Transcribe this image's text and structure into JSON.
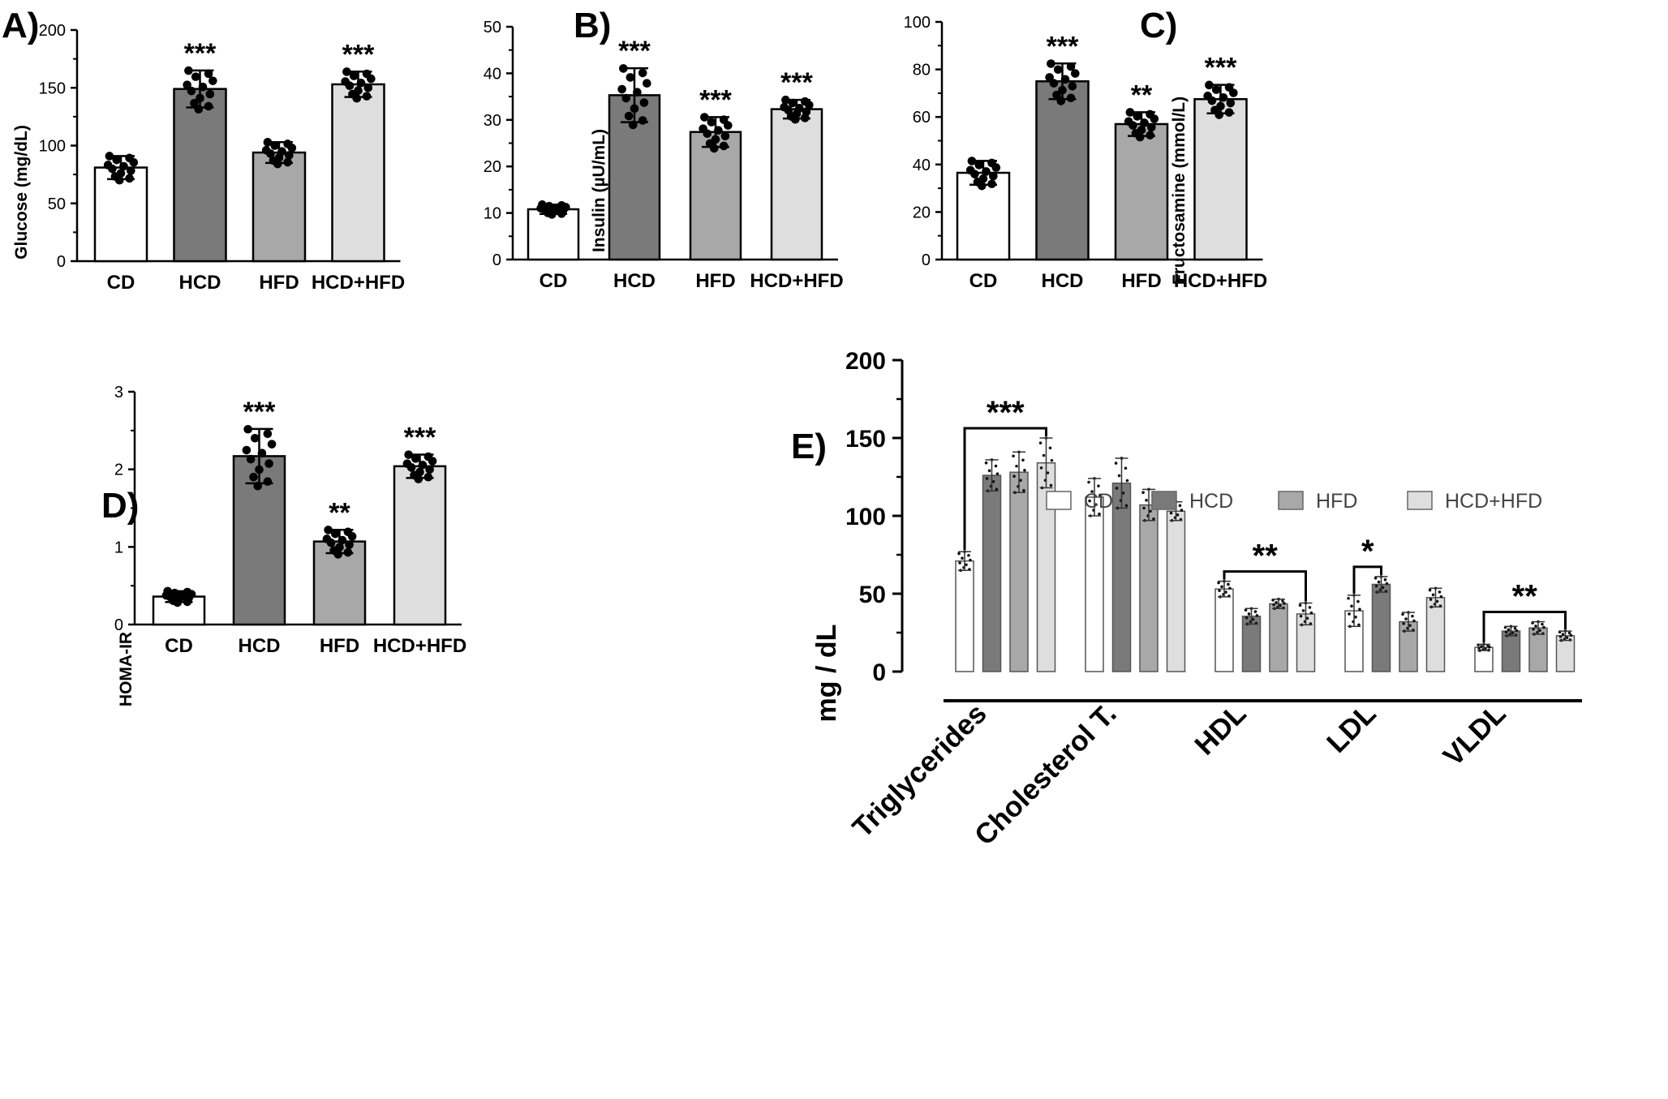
{
  "colors": {
    "CD": "#ffffff",
    "HCD": "#7a7a7a",
    "HFD": "#a8a8a8",
    "HCD+HFD": "#dedede",
    "axis": "#000000"
  },
  "chart_data": [
    {
      "id": "A",
      "type": "bar",
      "panel_label": "A)",
      "ylabel": "Glucose (mg/dL)",
      "categories": [
        "CD",
        "HCD",
        "HFD",
        "HCD+HFD"
      ],
      "values": [
        81,
        149,
        94,
        153
      ],
      "errors": [
        10,
        16,
        9,
        11
      ],
      "significance": [
        "",
        "***",
        "",
        "***"
      ],
      "ylim": [
        0,
        200
      ],
      "yticks": [
        "0",
        "50",
        "100",
        "150",
        "200"
      ],
      "legend": "none",
      "grid": false
    },
    {
      "id": "B",
      "type": "bar",
      "panel_label": "B)",
      "ylabel": "Insulin (µU/mL)",
      "categories": [
        "CD",
        "HCD",
        "HFD",
        "HCD+HFD"
      ],
      "values": [
        10.8,
        35.3,
        27.4,
        32.3
      ],
      "errors": [
        1.0,
        5.8,
        3.2,
        2.0
      ],
      "significance": [
        "",
        "***",
        "***",
        "***"
      ],
      "ylim": [
        0,
        50
      ],
      "yticks": [
        "0",
        "10",
        "20",
        "30",
        "40",
        "50"
      ],
      "legend": "none",
      "grid": false
    },
    {
      "id": "C",
      "type": "bar",
      "panel_label": "C)",
      "ylabel": "Fructosamine (mmol/L)",
      "categories": [
        "CD",
        "HCD",
        "HFD",
        "HCD+HFD"
      ],
      "values": [
        36.5,
        75,
        57,
        67.5
      ],
      "errors": [
        5,
        7.5,
        5,
        6
      ],
      "significance": [
        "",
        "***",
        "**",
        "***"
      ],
      "ylim": [
        0,
        100
      ],
      "yticks": [
        "0",
        "20",
        "40",
        "60",
        "80",
        "100"
      ],
      "legend": "none",
      "grid": false
    },
    {
      "id": "D",
      "type": "bar",
      "panel_label": "D)",
      "ylabel": "HOMA-IR",
      "categories": [
        "CD",
        "HCD",
        "HFD",
        "HCD+HFD"
      ],
      "values": [
        0.36,
        2.17,
        1.07,
        2.04
      ],
      "errors": [
        0.07,
        0.35,
        0.15,
        0.15
      ],
      "significance": [
        "",
        "***",
        "**",
        "***"
      ],
      "ylim": [
        0,
        3
      ],
      "yticks": [
        "0",
        "1",
        "2",
        "3"
      ],
      "legend": "none",
      "grid": false
    },
    {
      "id": "E",
      "type": "bar",
      "panel_label": "E)",
      "ylabel": "mg / dL",
      "categories": [
        "Triglycerides",
        "Cholesterol T.",
        "HDL",
        "LDL",
        "VLDL"
      ],
      "series": [
        {
          "name": "CD",
          "values": [
            71,
            112,
            53,
            39,
            15.5
          ],
          "errors": [
            6,
            12,
            5,
            10,
            2
          ]
        },
        {
          "name": "HCD",
          "values": [
            126,
            121,
            35.5,
            56,
            26
          ],
          "errors": [
            10,
            16,
            5,
            5,
            3
          ]
        },
        {
          "name": "HFD",
          "values": [
            128,
            107,
            43.5,
            32,
            28
          ],
          "errors": [
            13,
            10,
            3,
            6,
            4
          ]
        },
        {
          "name": "HCD+HFD",
          "values": [
            134,
            103,
            37,
            47.5,
            23
          ],
          "errors": [
            16,
            6,
            7,
            6,
            3
          ]
        }
      ],
      "brackets": [
        {
          "category": "Triglycerides",
          "from": "CD",
          "to": "HCD+HFD",
          "label": "***"
        },
        {
          "category": "HDL",
          "from": "CD",
          "to": "HCD+HFD",
          "label": "**"
        },
        {
          "category": "LDL",
          "from": "CD",
          "to": "HCD",
          "label": "*"
        },
        {
          "category": "VLDL",
          "from": "CD",
          "to": "HCD+HFD",
          "label": "**"
        }
      ],
      "ylim": [
        0,
        200
      ],
      "yticks": [
        "0",
        "50",
        "100",
        "150",
        "200"
      ],
      "legend": "top-right",
      "grid": false
    }
  ]
}
